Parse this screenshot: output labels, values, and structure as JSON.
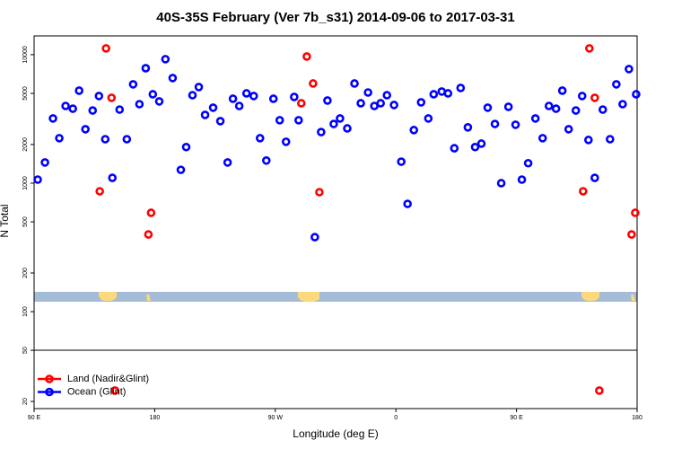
{
  "chart_data": {
    "type": "scatter",
    "title": "40S-35S February (Ver 7b_s31)   2014-09-06 to 2017-03-31",
    "x_label": "Longitude (deg E)",
    "y_label": "N Total",
    "log_y": true,
    "legend": "lower left",
    "xlim": [
      90,
      540
    ],
    "ylim": [
      17.6,
      14000
    ],
    "xticks": [
      {
        "value": 90,
        "label": "90 E"
      },
      {
        "value": 180,
        "label": "180"
      },
      {
        "value": 270,
        "label": "90 W"
      },
      {
        "value": 360,
        "label": "0"
      },
      {
        "value": 450,
        "label": "90 E"
      },
      {
        "value": 540,
        "label": "180"
      }
    ],
    "yticks": [
      20,
      50,
      100,
      200,
      500,
      1000,
      2000,
      5000,
      10000
    ],
    "series": [
      {
        "name": "Land (Nadir&Glint)",
        "color": "#ff0000",
        "x": [
          139.0,
          143.7,
          147.8,
          175.3,
          177.3,
          150.4,
          289.4,
          293.5,
          298.2,
          302.9,
          499.7,
          504.4,
          508.4,
          535.9,
          538.6,
          511.8
        ],
        "values": [
          865,
          11200,
          4620,
          399,
          588,
          24.3,
          4190,
          9680,
          5970,
          851,
          865,
          11200,
          4620,
          399,
          588,
          24.3
        ]
      },
      {
        "name": "Ocean (Glint)",
        "color": "#0000ff",
        "x": [
          92.7,
          98.1,
          104.1,
          108.8,
          113.5,
          118.9,
          123.6,
          128.3,
          133.7,
          138.4,
          143.1,
          148.4,
          153.8,
          159.2,
          163.9,
          168.6,
          173.3,
          178.6,
          183.4,
          188.0,
          193.4,
          199.5,
          203.5,
          208.2,
          212.9,
          217.6,
          223.6,
          229.0,
          234.4,
          238.4,
          243.1,
          248.5,
          253.9,
          258.6,
          263.3,
          268.6,
          273.3,
          278.0,
          284.1,
          287.4,
          299.5,
          304.2,
          308.9,
          313.6,
          318.3,
          323.7,
          329.1,
          333.8,
          339.2,
          343.9,
          348.6,
          353.3,
          358.6,
          364.0,
          368.7,
          373.4,
          378.8,
          384.2,
          388.2,
          394.2,
          398.9,
          403.6,
          408.3,
          413.7,
          419.1,
          423.8,
          428.5,
          433.9,
          438.6,
          444.0,
          449.3,
          454.0,
          458.7,
          464.1,
          469.5,
          474.2,
          479.5,
          484.2,
          488.9,
          494.3,
          499.0,
          503.7,
          508.4,
          514.4,
          519.8,
          524.5,
          529.2,
          533.9,
          539.3
        ],
        "values": [
          1066,
          1450,
          3190,
          2240,
          3990,
          3800,
          5250,
          2630,
          3680,
          4770,
          2200,
          1100,
          3740,
          2200,
          5880,
          4120,
          7850,
          4920,
          4330,
          9230,
          6580,
          1270,
          1910,
          4840,
          5600,
          3400,
          3870,
          3040,
          1450,
          4540,
          3990,
          5000,
          4770,
          2240,
          1500,
          4540,
          3090,
          2100,
          4690,
          3090,
          380,
          2500,
          4400,
          2890,
          3190,
          2670,
          5970,
          4190,
          5080,
          3990,
          4190,
          4840,
          4060,
          1470,
          690,
          2590,
          4260,
          3190,
          4920,
          5170,
          5000,
          1870,
          5510,
          2720,
          1910,
          2030,
          3870,
          2890,
          1000,
          3930,
          2850,
          1066,
          1430,
          3190,
          2240,
          3990,
          3800,
          5250,
          2630,
          3680,
          4770,
          2170,
          1100,
          3740,
          2200,
          5880,
          4120,
          7730,
          4920
        ]
      }
    ]
  }
}
